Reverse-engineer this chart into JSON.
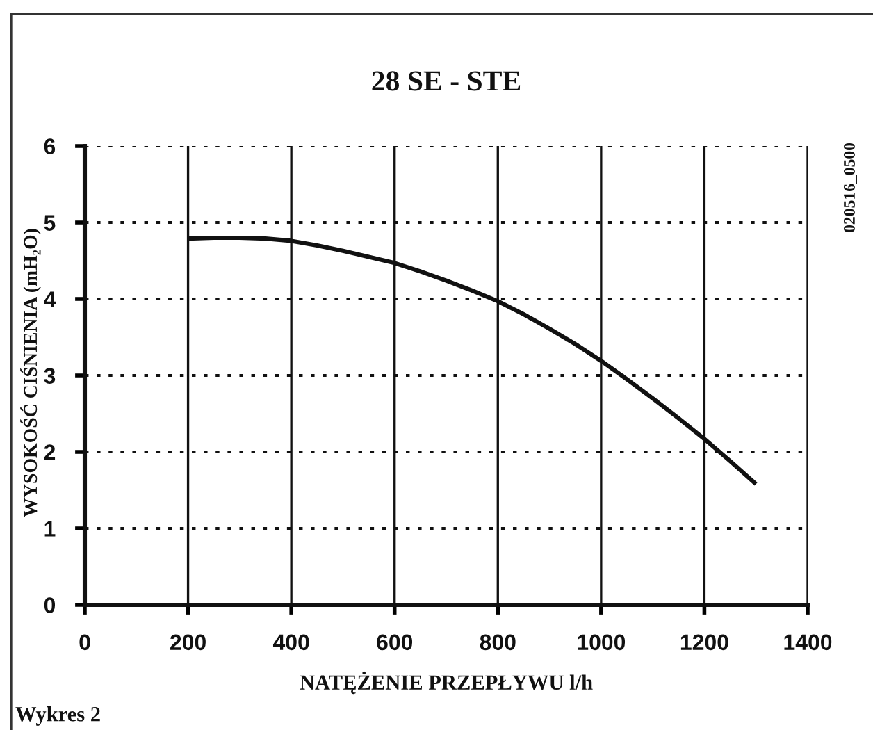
{
  "chart_data": {
    "type": "line",
    "title": "28 SE - STE",
    "xlabel": "NATĘŻENIE PRZEPŁYWU l/h",
    "ylabel": "WYSOKOŚĆ CIŚNIENIA (mH₂O)",
    "annotations": [
      "020516_0500",
      "Wykres 2"
    ],
    "x": [
      200,
      250,
      300,
      350,
      400,
      450,
      500,
      550,
      600,
      650,
      700,
      750,
      800,
      850,
      900,
      950,
      1000,
      1050,
      1100,
      1150,
      1200,
      1250,
      1300
    ],
    "series": [
      {
        "color": "#111111",
        "values": [
          4.79,
          4.8,
          4.8,
          4.79,
          4.76,
          4.7,
          4.63,
          4.55,
          4.47,
          4.36,
          4.24,
          4.11,
          3.97,
          3.8,
          3.61,
          3.41,
          3.19,
          2.95,
          2.7,
          2.44,
          2.17,
          1.88,
          1.58
        ]
      }
    ],
    "xlim": [
      0,
      1400
    ],
    "xticks": [
      0,
      200,
      400,
      600,
      800,
      1000,
      1200,
      1400
    ],
    "ylim": [
      0,
      6
    ],
    "yticks": [
      0,
      1,
      2,
      3,
      4,
      5,
      6
    ],
    "grid": true,
    "marker": "none",
    "line_style": "solid"
  }
}
